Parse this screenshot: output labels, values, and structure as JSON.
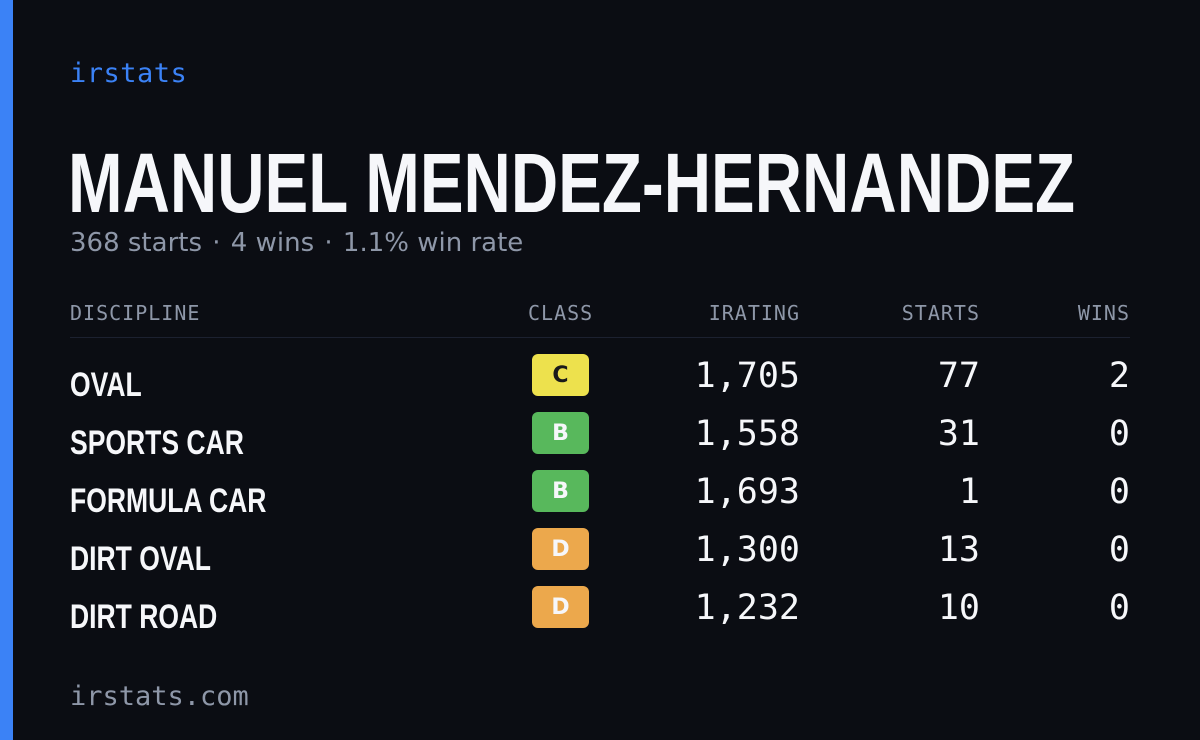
{
  "brand": "irstats",
  "player": {
    "name": "MANUEL MENDEZ-HERNANDEZ",
    "starts_text": "368 starts",
    "wins_text": "4 wins",
    "win_rate_text": "1.1% win rate",
    "separator": "·"
  },
  "table": {
    "headers": {
      "discipline": "DISCIPLINE",
      "class": "CLASS",
      "irating": "IRATING",
      "starts": "STARTS",
      "wins": "WINS"
    },
    "rows": [
      {
        "discipline": "OVAL",
        "class": "C",
        "class_color": "#ede14d",
        "class_text_color": "#1a1a1a",
        "irating": "1,705",
        "starts": "77",
        "wins": "2"
      },
      {
        "discipline": "SPORTS CAR",
        "class": "B",
        "class_color": "#58b85c",
        "class_text_color": "#f6f7fa",
        "irating": "1,558",
        "starts": "31",
        "wins": "0"
      },
      {
        "discipline": "FORMULA CAR",
        "class": "B",
        "class_color": "#58b85c",
        "class_text_color": "#f6f7fa",
        "irating": "1,693",
        "starts": "1",
        "wins": "0"
      },
      {
        "discipline": "DIRT OVAL",
        "class": "D",
        "class_color": "#eca84c",
        "class_text_color": "#f6f7fa",
        "irating": "1,300",
        "starts": "13",
        "wins": "0"
      },
      {
        "discipline": "DIRT ROAD",
        "class": "D",
        "class_color": "#eca84c",
        "class_text_color": "#f6f7fa",
        "irating": "1,232",
        "starts": "10",
        "wins": "0"
      }
    ]
  },
  "footer": {
    "url": "irstats.com"
  },
  "colors": {
    "background": "#0b0d13",
    "accent": "#3b82f6",
    "text": "#f6f7fa",
    "muted": "#8e97a8"
  }
}
